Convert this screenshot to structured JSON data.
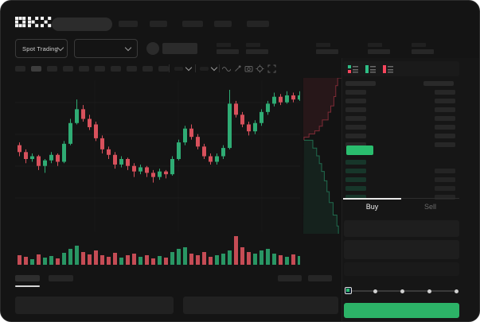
{
  "brand": {
    "name": "OKX"
  },
  "header": {
    "nav_item_count": 5,
    "search_placeholder": ""
  },
  "market_bar": {
    "pair_selector_label": "Spot Trading",
    "stat_group_count": 5
  },
  "chart_toolbar": {
    "interval_count": 10,
    "active_interval_index": 1,
    "icons": [
      "indicator-dropdown-icon",
      "compare-dropdown-icon",
      "line-type-icon",
      "draw-icon",
      "camera-icon",
      "settings-icon",
      "fullscreen-icon"
    ]
  },
  "chart_data": {
    "type": "candlestick",
    "title": "",
    "note": "no numeric axis labels visible; prices normalized to 0-100 scale read from candle geometry",
    "up_color": "#2fac74",
    "down_color": "#d8515c",
    "grid": true,
    "candles": [
      [
        60,
        62,
        52,
        55
      ],
      [
        55,
        57,
        47,
        50
      ],
      [
        50,
        54,
        48,
        52
      ],
      [
        52,
        53,
        42,
        45
      ],
      [
        45,
        50,
        40,
        49
      ],
      [
        49,
        55,
        47,
        53
      ],
      [
        53,
        54,
        45,
        48
      ],
      [
        48,
        63,
        47,
        61
      ],
      [
        61,
        79,
        60,
        76
      ],
      [
        76,
        93,
        75,
        86
      ],
      [
        86,
        89,
        77,
        79
      ],
      [
        79,
        82,
        71,
        73
      ],
      [
        75,
        77,
        63,
        65
      ],
      [
        65,
        67,
        54,
        57
      ],
      [
        57,
        59,
        50,
        53
      ],
      [
        53,
        55,
        43,
        46
      ],
      [
        46,
        52,
        44,
        50
      ],
      [
        50,
        51,
        42,
        45
      ],
      [
        45,
        47,
        37,
        41
      ],
      [
        41,
        46,
        39,
        44
      ],
      [
        44,
        45,
        37,
        40
      ],
      [
        40,
        42,
        33,
        37
      ],
      [
        37,
        43,
        35,
        41
      ],
      [
        41,
        42,
        36,
        39
      ],
      [
        39,
        52,
        38,
        50
      ],
      [
        50,
        64,
        49,
        62
      ],
      [
        62,
        74,
        60,
        72
      ],
      [
        72,
        75,
        64,
        66
      ],
      [
        66,
        68,
        57,
        59
      ],
      [
        59,
        61,
        50,
        52
      ],
      [
        52,
        54,
        46,
        48
      ],
      [
        48,
        54,
        46,
        52
      ],
      [
        52,
        60,
        50,
        58
      ],
      [
        58,
        100,
        57,
        90
      ],
      [
        90,
        92,
        80,
        82
      ],
      [
        82,
        84,
        73,
        75
      ],
      [
        75,
        77,
        67,
        70
      ],
      [
        70,
        78,
        68,
        76
      ],
      [
        76,
        86,
        74,
        84
      ],
      [
        84,
        92,
        82,
        90
      ],
      [
        90,
        98,
        88,
        95
      ],
      [
        95,
        97,
        89,
        91
      ],
      [
        91,
        99,
        90,
        96
      ],
      [
        96,
        98,
        91,
        93
      ],
      [
        93,
        99,
        92,
        96
      ]
    ],
    "volume": [
      12,
      10,
      7,
      13,
      9,
      11,
      8,
      15,
      20,
      24,
      16,
      13,
      18,
      12,
      10,
      15,
      9,
      12,
      14,
      10,
      12,
      8,
      11,
      9,
      16,
      20,
      22,
      14,
      12,
      16,
      10,
      12,
      14,
      18,
      36,
      22,
      16,
      14,
      18,
      20,
      14,
      12,
      10,
      13,
      11
    ]
  },
  "depth_chart": {
    "ask_color": "#f6465d",
    "bid_color": "#2ebd85",
    "asks_curve": [
      [
        1,
        0
      ],
      [
        0.9,
        0.05
      ],
      [
        0.85,
        0.12
      ],
      [
        0.8,
        0.18
      ],
      [
        0.72,
        0.22
      ],
      [
        0.65,
        0.27
      ],
      [
        0.5,
        0.31
      ],
      [
        0.42,
        0.34
      ],
      [
        0.3,
        0.36
      ],
      [
        0.15,
        0.38
      ],
      [
        0.02,
        0.4
      ]
    ],
    "bids_curve": [
      [
        0.02,
        0.4
      ],
      [
        0.25,
        0.45
      ],
      [
        0.35,
        0.5
      ],
      [
        0.42,
        0.55
      ],
      [
        0.48,
        0.6
      ],
      [
        0.55,
        0.66
      ],
      [
        0.62,
        0.73
      ],
      [
        0.68,
        0.8
      ],
      [
        0.78,
        0.88
      ],
      [
        0.88,
        0.95
      ],
      [
        0.92,
        1
      ]
    ]
  },
  "order_book": {
    "view_toggles": [
      "book-both-icon",
      "book-bids-icon",
      "book-asks-icon"
    ],
    "ask_row_count": 7,
    "bid_row_count": 5,
    "bid_rows_with_amount": [
      1,
      2,
      3,
      4
    ],
    "last_price_color": "#2abd6e"
  },
  "trade_panel": {
    "tabs": {
      "buy": "Buy",
      "sell": "Sell",
      "active": "buy"
    },
    "field_count": 3,
    "slider_stop_count": 5,
    "submit_color": "#2cb267"
  },
  "bottom_bar": {
    "tab_count": 2,
    "right_item_count": 2,
    "panel_count": 2
  }
}
